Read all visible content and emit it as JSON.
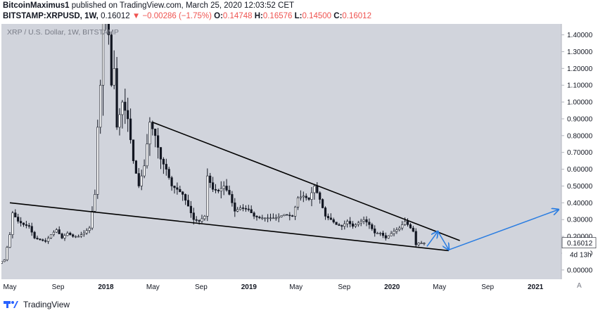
{
  "header": {
    "author": "BitcoinMaximus1",
    "published_text": "published on TradingView.com, March 25, 2020 12:03:52 CET",
    "symbol": "BITSTAMP:XRPUSD, 1W,",
    "last": "0.16012",
    "arrow": "▼",
    "change": "−0.00286 (−1.75%)",
    "o_label": "O:",
    "o_value": "0.14748",
    "h_label": "H:",
    "h_value": "0.16576",
    "l_label": "L:",
    "l_value": "0.14500",
    "c_label": "C:",
    "c_value": "0.16012"
  },
  "footer": {
    "brand": "TradingView"
  },
  "chart_data": {
    "type": "candlestick",
    "title": "XRP / U.S. Dollar, 1W, BITSTAMP",
    "y_axis": {
      "labels": [
        "0.00000",
        "0.10000",
        "0.20000",
        "0.30000",
        "0.40000",
        "0.50000",
        "0.60000",
        "0.70000",
        "0.80000",
        "0.90000",
        "1.00000",
        "1.10000",
        "1.20000",
        "1.30000",
        "1.40000"
      ],
      "range": [
        -0.03,
        1.44
      ]
    },
    "x_axis": {
      "labels": [
        "May",
        "Sep",
        "2018",
        "May",
        "Sep",
        "2019",
        "May",
        "Sep",
        "2020",
        "May",
        "Sep",
        "2021"
      ],
      "start": "2017-05",
      "end": "2021-03"
    },
    "price_label": "0.16012",
    "countdown_label": "4d 13h",
    "price": [
      [
        "2017-03-20",
        0.01
      ],
      [
        "2017-04-03",
        0.03
      ],
      [
        "2017-04-24",
        0.06
      ],
      [
        "2017-05-08",
        0.21
      ],
      [
        "2017-05-15",
        0.34
      ],
      [
        "2017-05-29",
        0.29
      ],
      [
        "2017-06-12",
        0.27
      ],
      [
        "2017-06-26",
        0.26
      ],
      [
        "2017-07-10",
        0.19
      ],
      [
        "2017-07-24",
        0.18
      ],
      [
        "2017-08-07",
        0.17
      ],
      [
        "2017-08-21",
        0.21
      ],
      [
        "2017-09-04",
        0.24
      ],
      [
        "2017-09-18",
        0.19
      ],
      [
        "2017-10-02",
        0.22
      ],
      [
        "2017-10-16",
        0.2
      ],
      [
        "2017-10-30",
        0.2
      ],
      [
        "2017-11-13",
        0.22
      ],
      [
        "2017-11-27",
        0.25
      ],
      [
        "2017-12-11",
        0.45
      ],
      [
        "2017-12-18",
        0.85
      ],
      [
        "2017-12-25",
        1.1
      ],
      [
        "2018-01-01",
        2.3
      ],
      [
        "2018-01-08",
        1.6
      ],
      [
        "2018-01-15",
        1.4
      ],
      [
        "2018-01-22",
        1.1
      ],
      [
        "2018-01-29",
        1.2
      ],
      [
        "2018-02-05",
        0.85
      ],
      [
        "2018-02-19",
        1.0
      ],
      [
        "2018-03-05",
        0.9
      ],
      [
        "2018-03-19",
        0.65
      ],
      [
        "2018-04-02",
        0.5
      ],
      [
        "2018-04-16",
        0.62
      ],
      [
        "2018-04-30",
        0.88
      ],
      [
        "2018-05-14",
        0.8
      ],
      [
        "2018-05-28",
        0.66
      ],
      [
        "2018-06-11",
        0.6
      ],
      [
        "2018-06-25",
        0.5
      ],
      [
        "2018-07-09",
        0.48
      ],
      [
        "2018-07-23",
        0.45
      ],
      [
        "2018-08-06",
        0.38
      ],
      [
        "2018-08-20",
        0.3
      ],
      [
        "2018-09-03",
        0.29
      ],
      [
        "2018-09-17",
        0.32
      ],
      [
        "2018-09-24",
        0.56
      ],
      [
        "2018-10-08",
        0.48
      ],
      [
        "2018-10-22",
        0.47
      ],
      [
        "2018-11-05",
        0.5
      ],
      [
        "2018-11-19",
        0.45
      ],
      [
        "2018-12-03",
        0.35
      ],
      [
        "2018-12-17",
        0.37
      ],
      [
        "2019-01-07",
        0.36
      ],
      [
        "2019-01-21",
        0.32
      ],
      [
        "2019-02-04",
        0.31
      ],
      [
        "2019-02-25",
        0.31
      ],
      [
        "2019-03-18",
        0.31
      ],
      [
        "2019-04-08",
        0.33
      ],
      [
        "2019-04-29",
        0.32
      ],
      [
        "2019-05-13",
        0.43
      ],
      [
        "2019-05-27",
        0.44
      ],
      [
        "2019-06-10",
        0.42
      ],
      [
        "2019-06-24",
        0.5
      ],
      [
        "2019-07-08",
        0.42
      ],
      [
        "2019-07-22",
        0.32
      ],
      [
        "2019-08-05",
        0.3
      ],
      [
        "2019-08-19",
        0.27
      ],
      [
        "2019-09-02",
        0.26
      ],
      [
        "2019-09-16",
        0.29
      ],
      [
        "2019-09-30",
        0.26
      ],
      [
        "2019-10-14",
        0.28
      ],
      [
        "2019-10-28",
        0.3
      ],
      [
        "2019-11-11",
        0.27
      ],
      [
        "2019-11-25",
        0.22
      ],
      [
        "2019-12-09",
        0.22
      ],
      [
        "2019-12-23",
        0.19
      ],
      [
        "2020-01-13",
        0.23
      ],
      [
        "2020-01-27",
        0.25
      ],
      [
        "2020-02-10",
        0.29
      ],
      [
        "2020-02-24",
        0.25
      ],
      [
        "2020-03-02",
        0.23
      ],
      [
        "2020-03-09",
        0.15
      ],
      [
        "2020-03-16",
        0.16
      ],
      [
        "2020-03-23",
        0.16
      ]
    ],
    "trendlines": [
      {
        "name": "upper",
        "start": [
          "2018-04-30",
          0.88
        ],
        "end": [
          "2020-06-22",
          0.175
        ]
      },
      {
        "name": "lower",
        "start": [
          "2017-05-01",
          0.4
        ],
        "end": [
          "2020-05-25",
          0.115
        ]
      }
    ],
    "projection": [
      [
        "2020-03-30",
        0.14
      ],
      [
        "2020-04-27",
        0.23
      ],
      [
        "2020-05-25",
        0.12
      ],
      [
        "2021-03-01",
        0.36
      ]
    ],
    "colors": {
      "background": "#d1d4dc",
      "candle_up": "#ffffff",
      "candle_down": "#131722",
      "projection": "#2a7de1",
      "trendline": "#000000",
      "price_tag": "#ffffff"
    }
  }
}
